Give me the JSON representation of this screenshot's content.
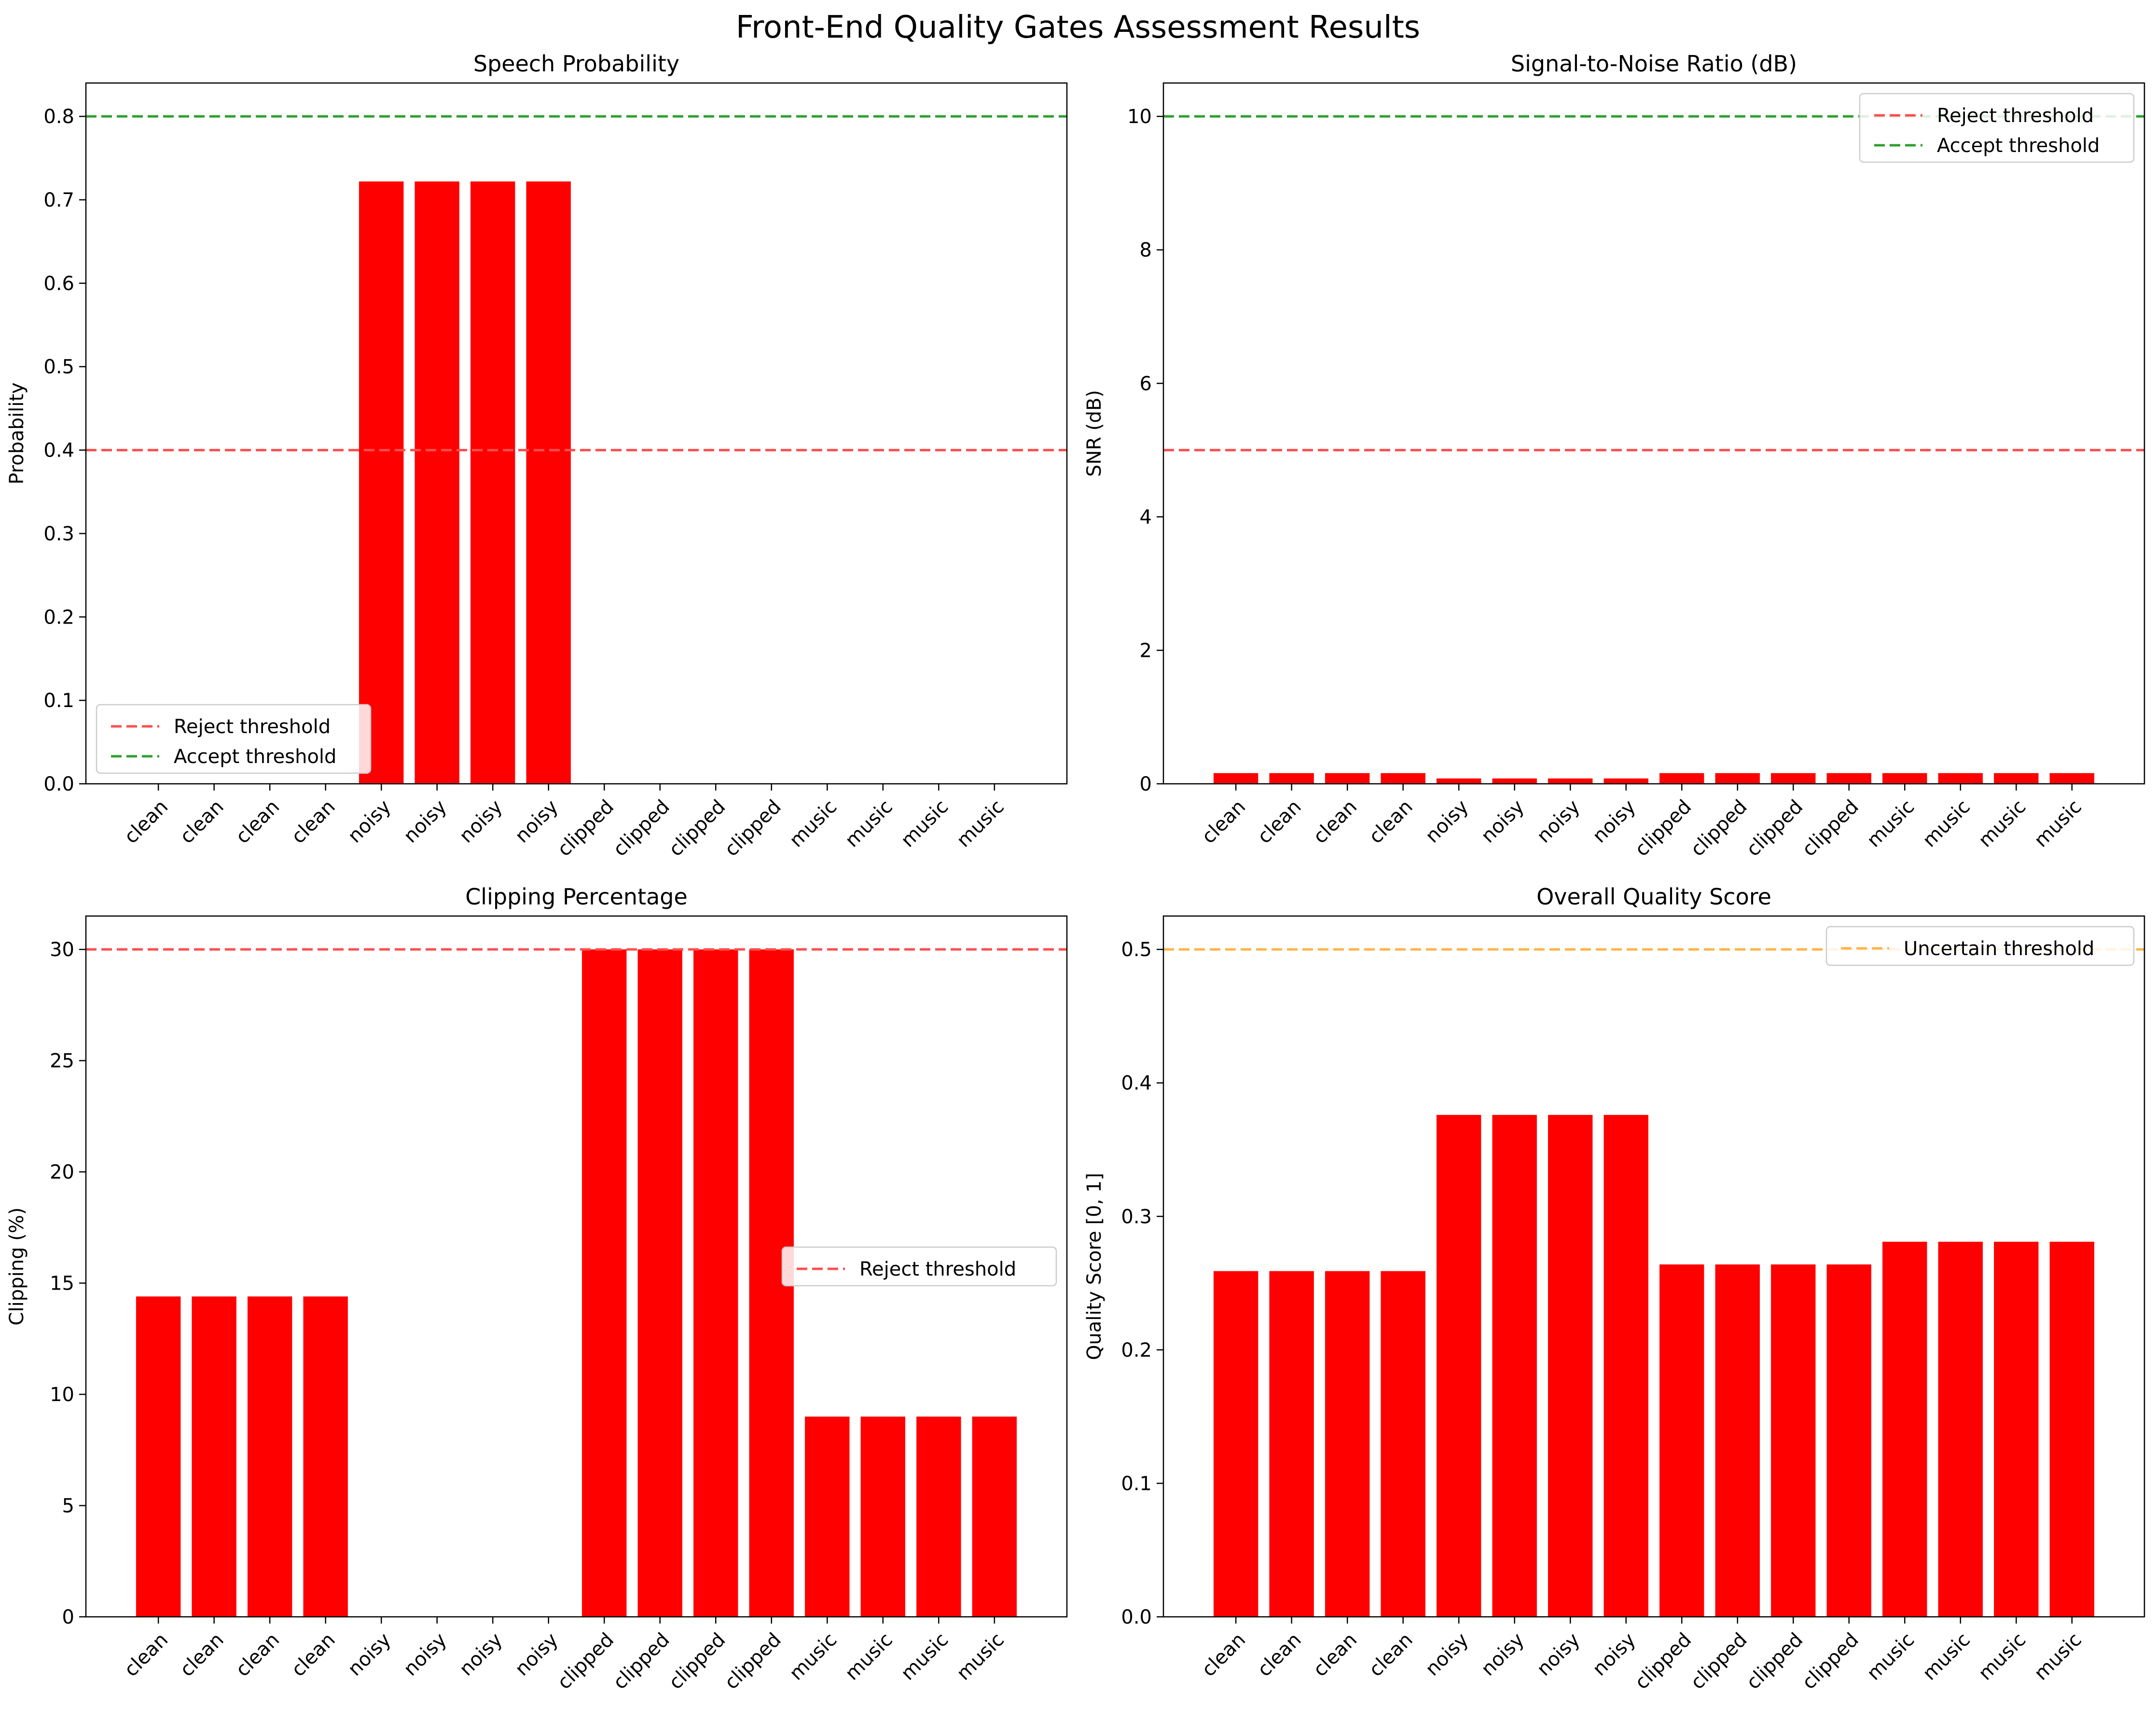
{
  "figure": {
    "title": "Front-End Quality Gates Assessment Results"
  },
  "colors": {
    "bar": "#ff0000",
    "reject": "#ff4d4d",
    "accept": "#2ca02c",
    "uncertain": "#ffb347"
  },
  "chart_data": [
    {
      "type": "bar",
      "title": "Speech Probability",
      "xlabel": "",
      "ylabel": "Probability",
      "categories": [
        "clean",
        "clean",
        "clean",
        "clean",
        "noisy",
        "noisy",
        "noisy",
        "noisy",
        "clipped",
        "clipped",
        "clipped",
        "clipped",
        "music",
        "music",
        "music",
        "music"
      ],
      "values": [
        0,
        0,
        0,
        0,
        0.722,
        0.722,
        0.722,
        0.722,
        0,
        0,
        0,
        0,
        0,
        0,
        0,
        0
      ],
      "ylim": [
        0,
        0.84
      ],
      "yticks": [
        0.0,
        0.1,
        0.2,
        0.3,
        0.4,
        0.5,
        0.6,
        0.7,
        0.8
      ],
      "ytick_labels": [
        "0.0",
        "0.1",
        "0.2",
        "0.3",
        "0.4",
        "0.5",
        "0.6",
        "0.7",
        "0.8"
      ],
      "thresholds": [
        {
          "name": "Reject threshold",
          "value": 0.4,
          "color": "#ff4d4d"
        },
        {
          "name": "Accept threshold",
          "value": 0.8,
          "color": "#2ca02c"
        }
      ],
      "legend": "lower-left"
    },
    {
      "type": "bar",
      "title": "Signal-to-Noise Ratio (dB)",
      "xlabel": "",
      "ylabel": "SNR (dB)",
      "categories": [
        "clean",
        "clean",
        "clean",
        "clean",
        "noisy",
        "noisy",
        "noisy",
        "noisy",
        "clipped",
        "clipped",
        "clipped",
        "clipped",
        "music",
        "music",
        "music",
        "music"
      ],
      "values": [
        0.16,
        0.16,
        0.16,
        0.16,
        0.08,
        0.08,
        0.08,
        0.08,
        0.16,
        0.16,
        0.16,
        0.16,
        0.16,
        0.16,
        0.16,
        0.16
      ],
      "ylim": [
        0,
        10.5
      ],
      "yticks": [
        0,
        2,
        4,
        6,
        8,
        10
      ],
      "ytick_labels": [
        "0",
        "2",
        "4",
        "6",
        "8",
        "10"
      ],
      "thresholds": [
        {
          "name": "Reject threshold",
          "value": 5,
          "color": "#ff4d4d"
        },
        {
          "name": "Accept threshold",
          "value": 10,
          "color": "#2ca02c"
        }
      ],
      "legend": "upper-right"
    },
    {
      "type": "bar",
      "title": "Clipping Percentage",
      "xlabel": "",
      "ylabel": "Clipping (%)",
      "categories": [
        "clean",
        "clean",
        "clean",
        "clean",
        "noisy",
        "noisy",
        "noisy",
        "noisy",
        "clipped",
        "clipped",
        "clipped",
        "clipped",
        "music",
        "music",
        "music",
        "music"
      ],
      "values": [
        14.4,
        14.4,
        14.4,
        14.4,
        0,
        0,
        0,
        0,
        30,
        30,
        30,
        30,
        9,
        9,
        9,
        9
      ],
      "ylim": [
        0,
        31.5
      ],
      "yticks": [
        0,
        5,
        10,
        15,
        20,
        25,
        30
      ],
      "ytick_labels": [
        "0",
        "5",
        "10",
        "15",
        "20",
        "25",
        "30"
      ],
      "thresholds": [
        {
          "name": "Reject threshold",
          "value": 30,
          "color": "#ff4d4d"
        }
      ],
      "legend": "center-right"
    },
    {
      "type": "bar",
      "title": "Overall Quality Score",
      "xlabel": "",
      "ylabel": "Quality Score [0, 1]",
      "categories": [
        "clean",
        "clean",
        "clean",
        "clean",
        "noisy",
        "noisy",
        "noisy",
        "noisy",
        "clipped",
        "clipped",
        "clipped",
        "clipped",
        "music",
        "music",
        "music",
        "music"
      ],
      "values": [
        0.259,
        0.259,
        0.259,
        0.259,
        0.376,
        0.376,
        0.376,
        0.376,
        0.264,
        0.264,
        0.264,
        0.264,
        0.281,
        0.281,
        0.281,
        0.281
      ],
      "ylim": [
        0,
        0.525
      ],
      "yticks": [
        0.0,
        0.1,
        0.2,
        0.3,
        0.4,
        0.5
      ],
      "ytick_labels": [
        "0.0",
        "0.1",
        "0.2",
        "0.3",
        "0.4",
        "0.5"
      ],
      "thresholds": [
        {
          "name": "Uncertain threshold",
          "value": 0.5,
          "color": "#ffb347"
        }
      ],
      "legend": "upper-right"
    }
  ]
}
